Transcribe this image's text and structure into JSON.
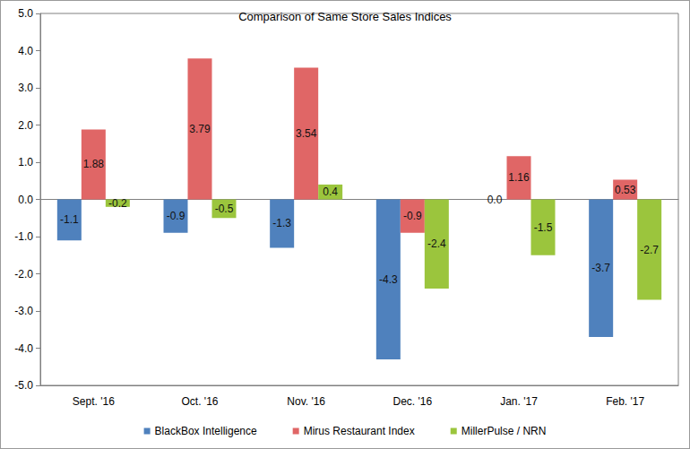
{
  "chart_data": {
    "type": "bar",
    "title": "Comparison of Same Store Sales Indices",
    "categories": [
      "Sept. '16",
      "Oct. '16",
      "Nov. '16",
      "Dec. '16",
      "Jan. '17",
      "Feb. '17"
    ],
    "series": [
      {
        "name": "BlackBox Intelligence",
        "color": "#4f81bd",
        "values": [
          -1.1,
          -0.9,
          -1.3,
          -4.3,
          0.0,
          -3.7
        ],
        "value_labels": [
          "-1.1",
          "-0.9",
          "-1.3",
          "-4.3",
          "0.0",
          "-3.7"
        ]
      },
      {
        "name": "Mirus Restaurant Index",
        "color": "#e06666",
        "values": [
          1.88,
          3.79,
          3.54,
          -0.9,
          1.16,
          0.53
        ]
      },
      {
        "name": "MillerPulse / NRN",
        "color": "#9bc53d",
        "values": [
          -0.2,
          -0.5,
          0.4,
          -2.4,
          -1.5,
          -2.7
        ]
      }
    ],
    "ylim": [
      -5,
      5
    ],
    "yticks": [
      {
        "value": -5,
        "label": "-5.0"
      },
      {
        "value": -4,
        "label": "-4.0"
      },
      {
        "value": -3,
        "label": "-3.0"
      },
      {
        "value": -2,
        "label": "-2.0"
      },
      {
        "value": -1,
        "label": "-1.0"
      },
      {
        "value": 0,
        "label": "0.0"
      },
      {
        "value": 1,
        "label": "1.0"
      },
      {
        "value": 2,
        "label": "2.0"
      },
      {
        "value": 3,
        "label": "3.0"
      },
      {
        "value": 4,
        "label": "4.0"
      },
      {
        "value": 5,
        "label": "5.0"
      }
    ],
    "grid": false,
    "legend": "bottom",
    "data_labels": true
  }
}
